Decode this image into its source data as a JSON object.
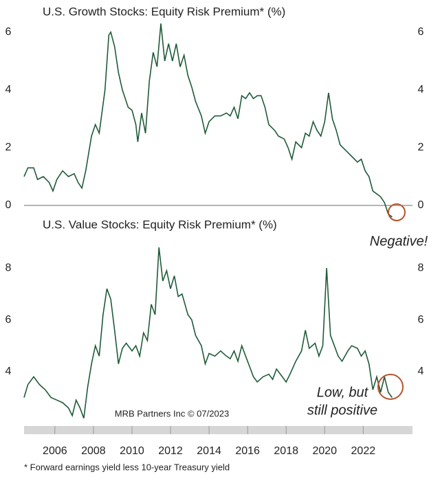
{
  "chart_data": [
    {
      "type": "line",
      "title": "U.S. Growth Stocks: Equity Risk Premium* (%)",
      "color": "#1e5a38",
      "xlim": [
        2004.4,
        2024.2
      ],
      "ylim": [
        -0.5,
        6.4
      ],
      "yticks": [
        0,
        2,
        4,
        6
      ],
      "annotations": [
        {
          "text": [
            "Negative!"
          ],
          "color": "#b4532a"
        }
      ],
      "x": [
        2004.4,
        2004.6,
        2004.9,
        2005.1,
        2005.4,
        2005.7,
        2005.9,
        2006.1,
        2006.4,
        2006.7,
        2007.0,
        2007.2,
        2007.4,
        2007.6,
        2007.9,
        2008.1,
        2008.3,
        2008.6,
        2008.8,
        2008.9,
        2009.1,
        2009.3,
        2009.5,
        2009.8,
        2010.0,
        2010.2,
        2010.3,
        2010.5,
        2010.7,
        2010.9,
        2011.1,
        2011.3,
        2011.5,
        2011.7,
        2011.9,
        2012.1,
        2012.3,
        2012.5,
        2012.7,
        2012.9,
        2013.1,
        2013.3,
        2013.6,
        2013.8,
        2014.0,
        2014.3,
        2014.6,
        2014.9,
        2015.1,
        2015.3,
        2015.5,
        2015.7,
        2015.9,
        2016.1,
        2016.3,
        2016.5,
        2016.7,
        2016.9,
        2017.1,
        2017.4,
        2017.6,
        2017.9,
        2018.1,
        2018.3,
        2018.5,
        2018.8,
        2019.0,
        2019.2,
        2019.4,
        2019.6,
        2019.8,
        2020.0,
        2020.2,
        2020.4,
        2020.6,
        2020.8,
        2021.1,
        2021.4,
        2021.7,
        2021.9,
        2022.1,
        2022.3,
        2022.5,
        2022.7,
        2022.9,
        2023.1,
        2023.3,
        2023.5
      ],
      "values": [
        1.0,
        1.3,
        1.3,
        0.9,
        1.0,
        0.8,
        0.5,
        0.9,
        1.2,
        1.0,
        1.1,
        0.8,
        0.6,
        1.2,
        2.4,
        2.8,
        2.5,
        4.0,
        5.9,
        6.0,
        5.5,
        4.6,
        4.0,
        3.4,
        3.3,
        2.8,
        2.2,
        3.2,
        2.5,
        4.3,
        5.3,
        4.8,
        6.3,
        5.0,
        5.6,
        5.0,
        5.6,
        4.8,
        5.2,
        4.5,
        4.1,
        3.6,
        3.1,
        2.5,
        2.9,
        3.1,
        3.1,
        3.2,
        3.1,
        3.4,
        3.0,
        3.8,
        3.7,
        3.9,
        3.7,
        3.8,
        3.8,
        3.4,
        2.8,
        2.6,
        2.4,
        2.3,
        2.0,
        1.6,
        2.2,
        2.0,
        2.5,
        2.4,
        2.9,
        2.6,
        2.4,
        2.9,
        3.9,
        3.0,
        2.6,
        2.1,
        1.9,
        1.7,
        1.5,
        1.6,
        1.2,
        1.0,
        0.5,
        0.4,
        0.3,
        0.1,
        -0.3,
        -0.4
      ]
    },
    {
      "type": "line",
      "title": "U.S. Value Stocks: Equity Risk Premium* (%)",
      "color": "#1e5a38",
      "xlim": [
        2004.4,
        2024.2
      ],
      "ylim": [
        1.9,
        9.2
      ],
      "yticks": [
        4,
        6,
        8
      ],
      "xticks": [
        2006,
        2008,
        2010,
        2012,
        2014,
        2016,
        2018,
        2020,
        2022
      ],
      "source": "MRB Partners Inc © 07/2023",
      "footnote": "* Forward earnings yield less 10-year Treasury yield",
      "annotations": [
        {
          "text": [
            "Low, but",
            "still positive"
          ],
          "color": "#b4532a"
        }
      ],
      "x": [
        2004.4,
        2004.6,
        2004.9,
        2005.2,
        2005.5,
        2005.8,
        2006.1,
        2006.4,
        2006.7,
        2006.9,
        2007.1,
        2007.3,
        2007.5,
        2007.7,
        2007.9,
        2008.1,
        2008.3,
        2008.5,
        2008.7,
        2008.9,
        2009.1,
        2009.3,
        2009.5,
        2009.7,
        2010.0,
        2010.2,
        2010.4,
        2010.6,
        2010.8,
        2011.0,
        2011.2,
        2011.4,
        2011.6,
        2011.8,
        2012.0,
        2012.2,
        2012.4,
        2012.6,
        2012.9,
        2013.1,
        2013.3,
        2013.6,
        2013.8,
        2014.0,
        2014.3,
        2014.6,
        2014.9,
        2015.1,
        2015.3,
        2015.5,
        2015.7,
        2015.9,
        2016.1,
        2016.3,
        2016.5,
        2016.8,
        2017.1,
        2017.3,
        2017.5,
        2017.8,
        2018.0,
        2018.2,
        2018.5,
        2018.8,
        2019.0,
        2019.2,
        2019.5,
        2019.7,
        2019.9,
        2020.1,
        2020.3,
        2020.5,
        2020.7,
        2020.9,
        2021.2,
        2021.4,
        2021.7,
        2021.9,
        2022.1,
        2022.3,
        2022.5,
        2022.7,
        2022.9,
        2023.1,
        2023.3,
        2023.5
      ],
      "values": [
        3.0,
        3.5,
        3.8,
        3.5,
        3.3,
        3.0,
        2.9,
        2.8,
        2.6,
        2.3,
        2.9,
        2.6,
        2.2,
        3.4,
        4.3,
        5.0,
        4.6,
        6.2,
        7.2,
        6.8,
        5.6,
        4.3,
        4.9,
        5.1,
        4.8,
        5.0,
        4.6,
        5.5,
        5.2,
        6.6,
        6.2,
        8.8,
        7.5,
        7.9,
        7.2,
        7.7,
        6.9,
        7.0,
        6.2,
        6.0,
        5.4,
        5.0,
        4.3,
        4.7,
        4.6,
        4.8,
        4.6,
        4.5,
        4.8,
        4.4,
        5.0,
        4.6,
        4.2,
        3.8,
        3.6,
        3.8,
        3.9,
        3.7,
        4.1,
        3.8,
        3.6,
        3.9,
        4.4,
        4.8,
        5.6,
        4.9,
        5.1,
        4.6,
        5.0,
        8.0,
        5.4,
        5.0,
        4.6,
        4.4,
        4.8,
        5.0,
        4.9,
        4.6,
        4.8,
        4.3,
        3.3,
        3.8,
        3.2,
        3.8,
        3.2,
        3.0
      ]
    }
  ]
}
